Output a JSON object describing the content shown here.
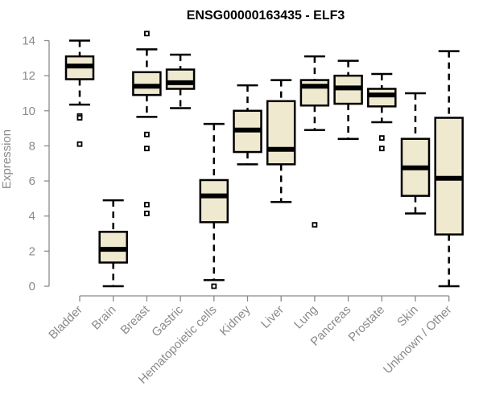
{
  "chart_data": {
    "type": "boxplot",
    "title": "ENSG00000163435 - ELF3",
    "xlabel": "",
    "ylabel": "Expression",
    "ylim": [
      0,
      14
    ],
    "yticks": [
      0,
      2,
      4,
      6,
      8,
      10,
      12,
      14
    ],
    "grid": false,
    "legend": "none",
    "box_color": "#efe9d0",
    "line_color": "#000000",
    "categories": [
      "Bladder",
      "Brain",
      "Breast",
      "Gastric",
      "Hematopoietic cells",
      "Kidney",
      "Liver",
      "Lung",
      "Pancreas",
      "Prostate",
      "Skin",
      "Unknown / Other"
    ],
    "series": [
      {
        "name": "Bladder",
        "whisker_low": 10.35,
        "q1": 11.8,
        "median": 12.55,
        "q3": 13.1,
        "whisker_high": 14.0,
        "outliers": [
          9.7,
          9.6,
          8.1
        ]
      },
      {
        "name": "Brain",
        "whisker_low": 0.0,
        "q1": 1.35,
        "median": 2.1,
        "q3": 3.1,
        "whisker_high": 4.9,
        "outliers": []
      },
      {
        "name": "Breast",
        "whisker_low": 9.65,
        "q1": 10.9,
        "median": 11.4,
        "q3": 12.2,
        "whisker_high": 13.5,
        "outliers": [
          14.4,
          8.65,
          7.85,
          4.65,
          4.15
        ]
      },
      {
        "name": "Gastric",
        "whisker_low": 10.15,
        "q1": 11.25,
        "median": 11.6,
        "q3": 12.35,
        "whisker_high": 13.2,
        "outliers": []
      },
      {
        "name": "Hematopoietic cells",
        "whisker_low": 0.35,
        "q1": 3.65,
        "median": 5.15,
        "q3": 6.05,
        "whisker_high": 9.25,
        "outliers": [
          0.0
        ]
      },
      {
        "name": "Kidney",
        "whisker_low": 6.95,
        "q1": 7.65,
        "median": 8.9,
        "q3": 10.0,
        "whisker_high": 11.45,
        "outliers": []
      },
      {
        "name": "Liver",
        "whisker_low": 4.8,
        "q1": 6.95,
        "median": 7.8,
        "q3": 10.55,
        "whisker_high": 11.75,
        "outliers": []
      },
      {
        "name": "Lung",
        "whisker_low": 8.9,
        "q1": 10.3,
        "median": 11.4,
        "q3": 11.75,
        "whisker_high": 13.1,
        "outliers": [
          3.5
        ]
      },
      {
        "name": "Pancreas",
        "whisker_low": 8.4,
        "q1": 10.4,
        "median": 11.3,
        "q3": 12.0,
        "whisker_high": 12.85,
        "outliers": []
      },
      {
        "name": "Prostate",
        "whisker_low": 9.35,
        "q1": 10.25,
        "median": 10.9,
        "q3": 11.25,
        "whisker_high": 12.1,
        "outliers": [
          8.45,
          7.85
        ]
      },
      {
        "name": "Skin",
        "whisker_low": 4.15,
        "q1": 5.15,
        "median": 6.75,
        "q3": 8.4,
        "whisker_high": 11.0,
        "outliers": []
      },
      {
        "name": "Unknown / Other",
        "whisker_low": 0.0,
        "q1": 2.95,
        "median": 6.15,
        "q3": 9.6,
        "whisker_high": 13.4,
        "outliers": []
      }
    ]
  }
}
